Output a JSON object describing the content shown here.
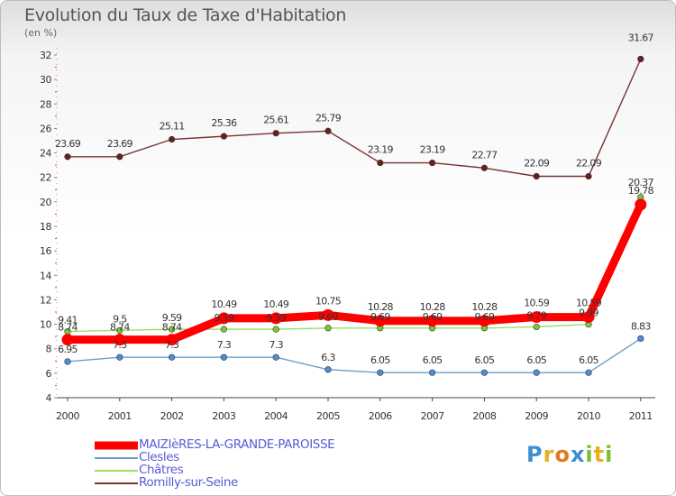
{
  "header": {
    "title": "Evolution du Taux de Taxe d'Habitation",
    "unit": "(en %)"
  },
  "logo": {
    "text": "Proxiti",
    "letters": [
      {
        "ch": "P",
        "color": "#3a8fd4"
      },
      {
        "ch": "r",
        "color": "#e8b020"
      },
      {
        "ch": "o",
        "color": "#e07a20"
      },
      {
        "ch": "x",
        "color": "#3a8fd4"
      },
      {
        "ch": "i",
        "color": "#7bbf2a"
      },
      {
        "ch": "t",
        "color": "#e8b020"
      },
      {
        "ch": "i",
        "color": "#7bbf2a"
      }
    ]
  },
  "chart_data": {
    "type": "line",
    "title": "Evolution du Taux de Taxe d'Habitation",
    "ylabel": "(en %)",
    "xlabel": "",
    "ylim": [
      4,
      32
    ],
    "yticks": [
      4,
      6,
      8,
      10,
      12,
      14,
      16,
      18,
      20,
      22,
      24,
      26,
      28,
      30,
      32
    ],
    "categories": [
      "2000",
      "2001",
      "2002",
      "2003",
      "2004",
      "2005",
      "2006",
      "2007",
      "2008",
      "2009",
      "2010",
      "2011"
    ],
    "grid": false,
    "legend_position": "bottom-left",
    "series": [
      {
        "name": "MAIZIèRES-LA-GRANDE-PAROISSE",
        "color": "#ff0000",
        "marker": "#ff0000",
        "values": [
          8.74,
          8.74,
          8.74,
          10.49,
          10.49,
          10.75,
          10.28,
          10.28,
          10.28,
          10.59,
          10.59,
          19.78
        ],
        "labels": [
          "8.74",
          "8.74",
          "8.74",
          "10.49",
          "10.49",
          "10.75",
          "10.28",
          "10.28",
          "10.28",
          "10.59",
          "10.59",
          "19.78"
        ]
      },
      {
        "name": "Clesles",
        "color": "#6a9fc8",
        "marker": "#4a90d9",
        "values": [
          6.95,
          7.3,
          7.3,
          7.3,
          7.3,
          6.3,
          6.05,
          6.05,
          6.05,
          6.05,
          6.05,
          8.83
        ],
        "labels": [
          "6.95",
          "7.3",
          "7.3",
          "7.3",
          "7.3",
          "6.3",
          "6.05",
          "6.05",
          "6.05",
          "6.05",
          "6.05",
          "8.83"
        ]
      },
      {
        "name": "Châtres",
        "color": "#99e066",
        "marker": "#77cc33",
        "values": [
          9.41,
          9.5,
          9.59,
          9.59,
          9.59,
          9.69,
          9.69,
          9.69,
          9.69,
          9.79,
          9.99,
          20.37
        ],
        "labels": [
          "9.41",
          "9.5",
          "9.59",
          "9.59",
          "9.59",
          "9.69",
          "9.69",
          "9.69",
          "9.69",
          "9.79",
          "9.99",
          "20.37"
        ]
      },
      {
        "name": "Romilly-sur-Seine",
        "color": "#7a3030",
        "marker": "#6b1e1e",
        "values": [
          23.69,
          23.69,
          25.11,
          25.36,
          25.61,
          25.79,
          23.19,
          23.19,
          22.77,
          22.09,
          22.09,
          31.67
        ],
        "labels": [
          "23.69",
          "23.69",
          "25.11",
          "25.36",
          "25.61",
          "25.79",
          "23.19",
          "23.19",
          "22.77",
          "22.09",
          "22.09",
          "31.67"
        ]
      }
    ]
  }
}
